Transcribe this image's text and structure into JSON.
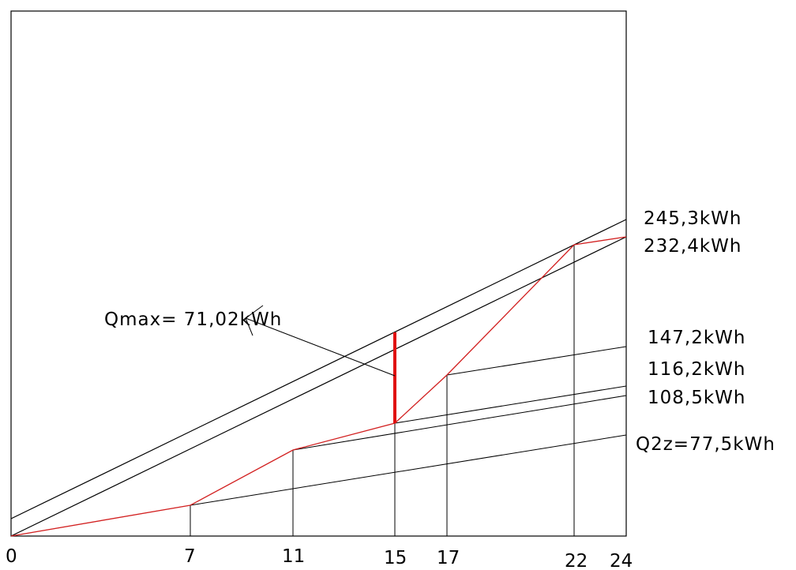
{
  "diagram": {
    "x_ticks": [
      "0",
      "7",
      "11",
      "15",
      "17",
      "22",
      "24"
    ],
    "right_labels": [
      {
        "id": "l245",
        "text": "245,3kWh"
      },
      {
        "id": "l232",
        "text": "232,4kWh"
      },
      {
        "id": "l147",
        "text": "147,2kWh"
      },
      {
        "id": "l116",
        "text": "116,2kWh"
      },
      {
        "id": "l108",
        "text": "108,5kWh"
      },
      {
        "id": "l77",
        "text": "Q2z=77,5kWh"
      }
    ],
    "annotation": "Qmax= 71,02kWh",
    "colors": {
      "line": "#000000",
      "profile": "#d22020",
      "highlight": "#e01010"
    }
  }
}
